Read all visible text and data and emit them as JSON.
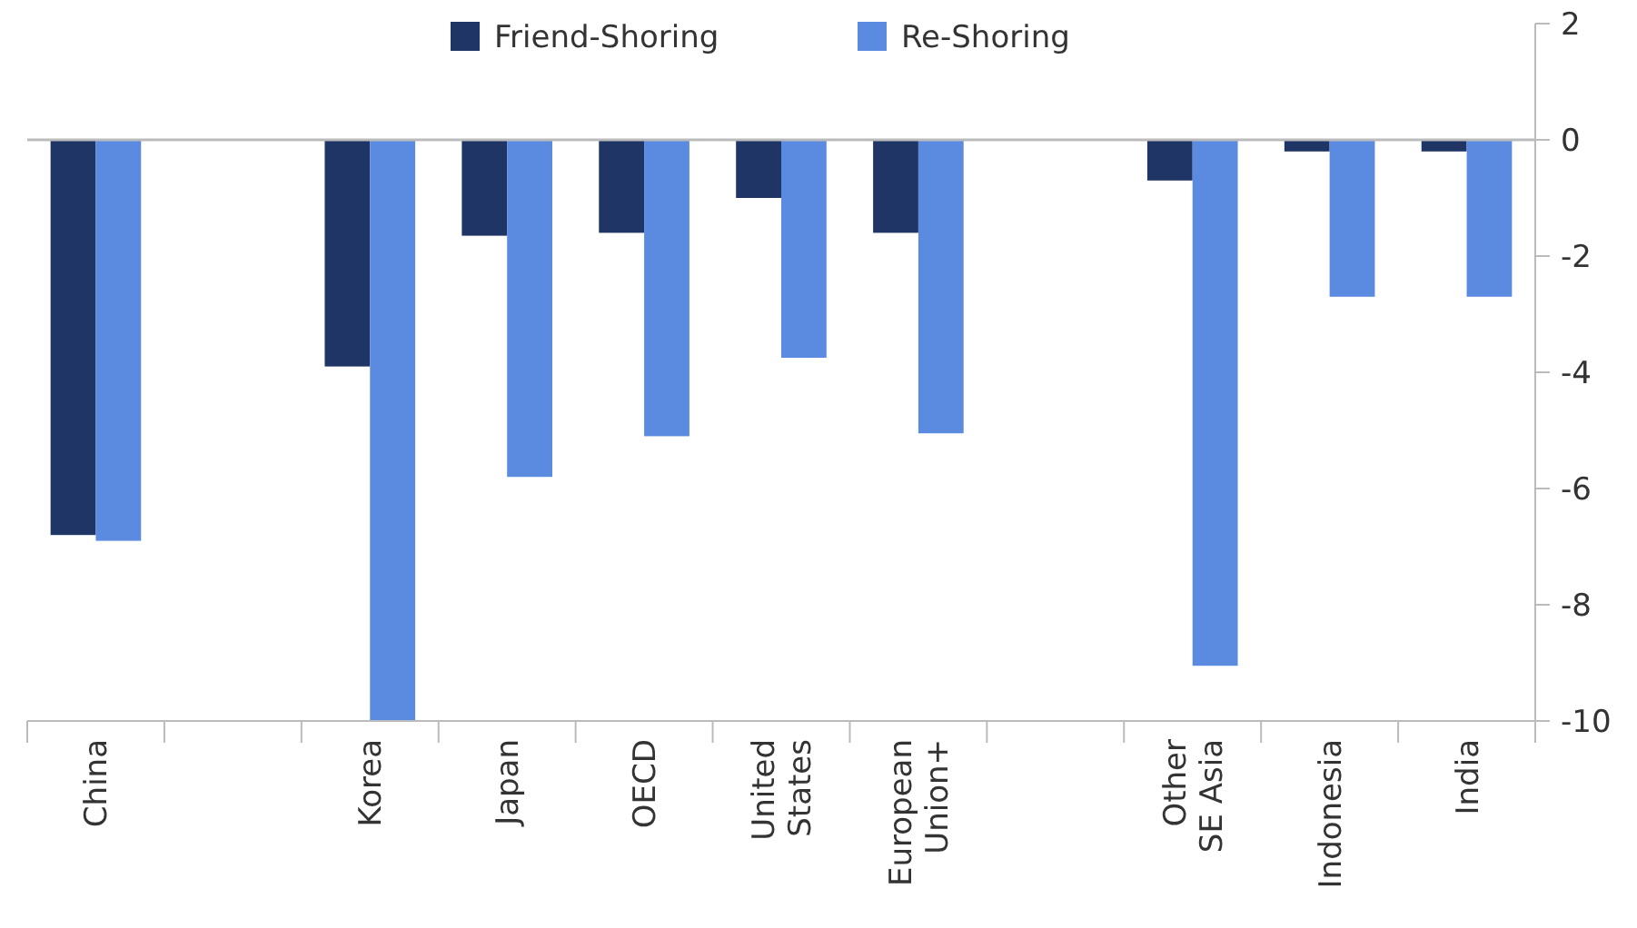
{
  "chart_data": {
    "type": "bar",
    "categories": [
      "China",
      null,
      "Korea",
      "Japan",
      "OECD",
      "United\nStates",
      "European\nUnion+",
      null,
      "Other\nSE Asia",
      "Indonesia",
      "India"
    ],
    "series": [
      {
        "name": "Friend-Shoring",
        "color": "#1f3566",
        "values": [
          -6.8,
          null,
          -3.9,
          -1.65,
          -1.6,
          -1.0,
          -1.6,
          null,
          -0.7,
          -0.2,
          -0.2
        ]
      },
      {
        "name": "Re-Shoring",
        "color": "#5a8be0",
        "values": [
          -6.9,
          null,
          -10,
          -5.8,
          -5.1,
          -3.75,
          -5.05,
          null,
          -9.05,
          -2.7,
          -2.7
        ]
      }
    ],
    "ylim": [
      -10,
      2
    ],
    "yticks": [
      -10,
      -8,
      -6,
      -4,
      -2,
      0,
      2
    ],
    "grid": false,
    "legend": "top",
    "ref_lines": [
      {
        "axis": "y",
        "value": 0,
        "color": "#bbbbbb"
      }
    ]
  }
}
